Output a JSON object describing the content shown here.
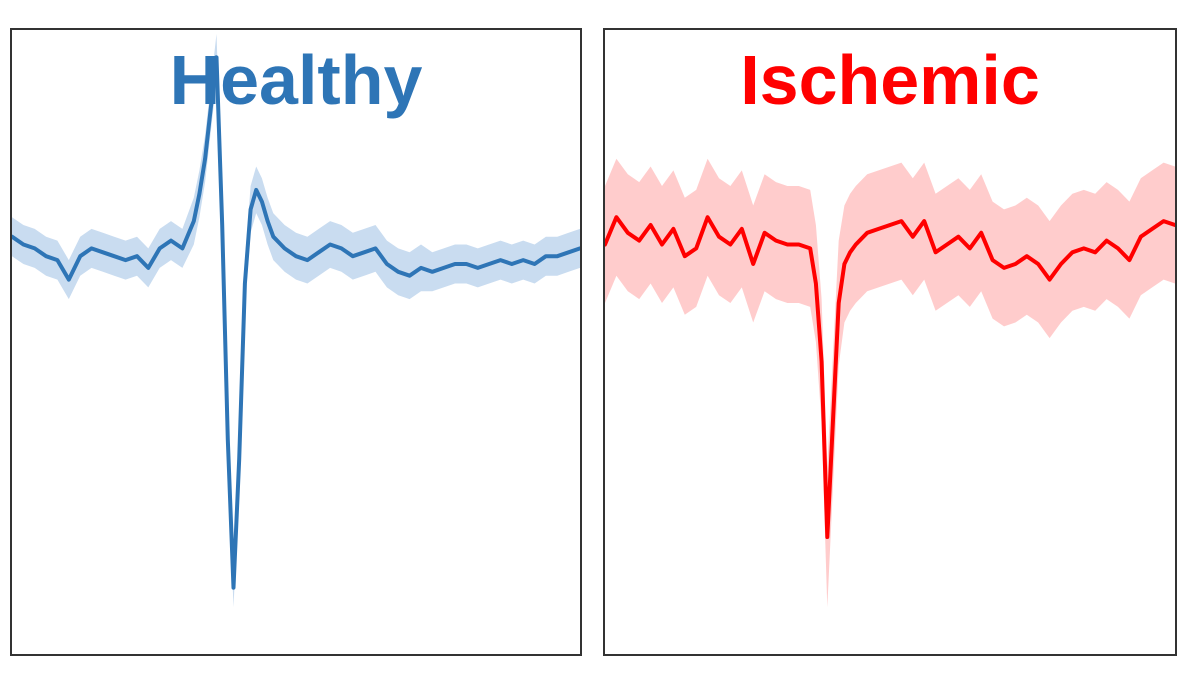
{
  "chart_data": [
    {
      "type": "line",
      "title": "Healthy",
      "color": "#2e75b6",
      "band_color": "#c9dcf0",
      "xlabel": "",
      "ylabel": "",
      "xlim": [
        0,
        100
      ],
      "ylim": [
        -1.0,
        0.6
      ],
      "grid": false,
      "legend": "none",
      "series": [
        {
          "x": [
            0,
            2,
            4,
            6,
            8,
            10,
            12,
            14,
            16,
            18,
            20,
            22,
            24,
            26,
            28,
            30,
            32,
            33,
            34,
            35,
            36,
            37,
            38,
            39,
            40,
            41,
            42,
            43,
            44,
            45,
            46,
            48,
            50,
            52,
            54,
            56,
            58,
            60,
            62,
            64,
            66,
            68,
            70,
            72,
            74,
            76,
            78,
            80,
            82,
            84,
            86,
            88,
            90,
            92,
            94,
            96,
            98,
            100
          ],
          "y": [
            0.07,
            0.05,
            0.04,
            0.02,
            0.01,
            -0.04,
            0.02,
            0.04,
            0.03,
            0.02,
            0.01,
            0.02,
            -0.01,
            0.04,
            0.06,
            0.04,
            0.11,
            0.18,
            0.27,
            0.4,
            0.53,
            0.1,
            -0.45,
            -0.83,
            -0.5,
            -0.05,
            0.14,
            0.19,
            0.16,
            0.11,
            0.07,
            0.04,
            0.02,
            0.01,
            0.03,
            0.05,
            0.04,
            0.02,
            0.03,
            0.04,
            0.0,
            -0.02,
            -0.03,
            -0.01,
            -0.02,
            -0.01,
            0.0,
            0.0,
            -0.01,
            0.0,
            0.01,
            0.0,
            0.01,
            0.0,
            0.02,
            0.02,
            0.03,
            0.04
          ],
          "band": [
            0.05,
            0.05,
            0.05,
            0.05,
            0.05,
            0.05,
            0.05,
            0.05,
            0.05,
            0.05,
            0.05,
            0.05,
            0.05,
            0.05,
            0.05,
            0.05,
            0.06,
            0.06,
            0.06,
            0.06,
            0.06,
            0.06,
            0.05,
            0.05,
            0.06,
            0.06,
            0.06,
            0.06,
            0.06,
            0.06,
            0.06,
            0.06,
            0.06,
            0.06,
            0.06,
            0.06,
            0.06,
            0.06,
            0.06,
            0.06,
            0.06,
            0.06,
            0.06,
            0.06,
            0.05,
            0.05,
            0.05,
            0.05,
            0.05,
            0.05,
            0.05,
            0.05,
            0.05,
            0.05,
            0.05,
            0.05,
            0.05,
            0.05
          ]
        }
      ]
    },
    {
      "type": "line",
      "title": "Ischemic",
      "color": "#ff0000",
      "band_color": "#ffcccc",
      "xlabel": "",
      "ylabel": "",
      "xlim": [
        0,
        100
      ],
      "ylim": [
        -1.0,
        0.6
      ],
      "grid": false,
      "legend": "none",
      "series": [
        {
          "x": [
            0,
            2,
            4,
            6,
            8,
            10,
            12,
            14,
            16,
            18,
            20,
            22,
            24,
            26,
            28,
            30,
            32,
            34,
            36,
            37,
            38,
            39,
            40,
            41,
            42,
            43,
            44,
            46,
            48,
            50,
            52,
            54,
            56,
            58,
            60,
            62,
            64,
            66,
            68,
            70,
            72,
            74,
            76,
            78,
            80,
            82,
            84,
            86,
            88,
            90,
            92,
            94,
            96,
            98,
            100
          ],
          "y": [
            0.05,
            0.12,
            0.08,
            0.06,
            0.1,
            0.05,
            0.09,
            0.02,
            0.04,
            0.12,
            0.07,
            0.05,
            0.09,
            0.0,
            0.08,
            0.06,
            0.05,
            0.05,
            0.04,
            -0.05,
            -0.25,
            -0.7,
            -0.4,
            -0.1,
            0.0,
            0.03,
            0.05,
            0.08,
            0.09,
            0.1,
            0.11,
            0.07,
            0.11,
            0.03,
            0.05,
            0.07,
            0.04,
            0.08,
            0.01,
            -0.01,
            0.0,
            0.02,
            0.0,
            -0.04,
            0.0,
            0.03,
            0.04,
            0.03,
            0.06,
            0.04,
            0.01,
            0.07,
            0.09,
            0.11,
            0.1
          ],
          "band": [
            0.15,
            0.15,
            0.15,
            0.15,
            0.15,
            0.15,
            0.15,
            0.15,
            0.15,
            0.15,
            0.15,
            0.15,
            0.15,
            0.15,
            0.15,
            0.15,
            0.15,
            0.15,
            0.15,
            0.15,
            0.16,
            0.18,
            0.17,
            0.16,
            0.15,
            0.15,
            0.15,
            0.15,
            0.15,
            0.15,
            0.15,
            0.15,
            0.15,
            0.15,
            0.15,
            0.15,
            0.15,
            0.15,
            0.15,
            0.15,
            0.15,
            0.15,
            0.15,
            0.15,
            0.15,
            0.15,
            0.15,
            0.15,
            0.15,
            0.15,
            0.15,
            0.15,
            0.15,
            0.15,
            0.15
          ]
        }
      ]
    }
  ]
}
